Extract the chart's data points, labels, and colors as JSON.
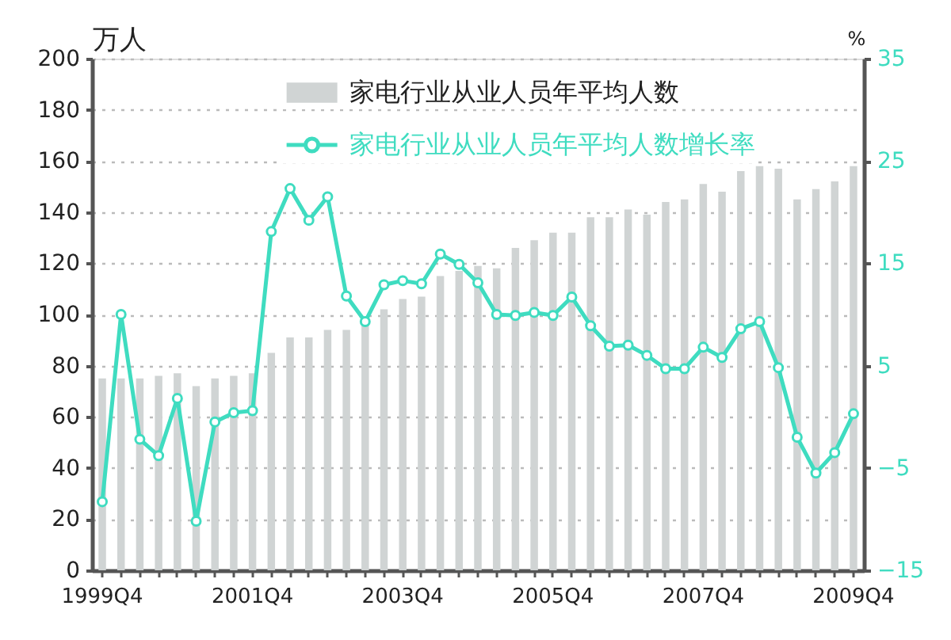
{
  "chart_data": {
    "type": "bar",
    "categories": [
      "1999Q4",
      null,
      null,
      null,
      null,
      null,
      null,
      null,
      "2001Q4",
      null,
      null,
      null,
      null,
      null,
      null,
      null,
      "2003Q4",
      null,
      null,
      null,
      null,
      null,
      null,
      null,
      "2005Q4",
      null,
      null,
      null,
      null,
      null,
      null,
      null,
      "2007Q4",
      null,
      null,
      null,
      null,
      null,
      null,
      null,
      "2009Q4"
    ],
    "ylabel": "万人",
    "y2label": "%",
    "ylim": [
      0,
      200
    ],
    "yticks": [
      0,
      20,
      40,
      60,
      80,
      100,
      120,
      140,
      160,
      180,
      200
    ],
    "y2lim": [
      -15,
      35
    ],
    "y2ticks": [
      -15,
      -5,
      5,
      15,
      25,
      35
    ],
    "grid": "y",
    "legend": "top",
    "marker": "circle",
    "series": [
      {
        "name": "家电行业从业人员年平均人数",
        "color": "#d0d4d4",
        "values": [
          75,
          75,
          75,
          76,
          77,
          72,
          75,
          76,
          77,
          85,
          91,
          91,
          94,
          94,
          98,
          102,
          106,
          107,
          115,
          117,
          119,
          118,
          126,
          129,
          132,
          132,
          138,
          138,
          141,
          139,
          144,
          145,
          151,
          148,
          156,
          158,
          157,
          145,
          149,
          152,
          158
        ]
      },
      {
        "name": "家电行业从业人员年平均人数增长率",
        "type": "line",
        "axis": "y2",
        "color": "#3fdcc0",
        "values": [
          -8.3,
          10.0,
          -2.2,
          -3.8,
          1.8,
          -10.2,
          -0.5,
          0.4,
          0.6,
          18.1,
          22.3,
          19.2,
          21.5,
          11.8,
          9.3,
          12.9,
          13.3,
          13.0,
          15.9,
          14.9,
          13.1,
          10.0,
          9.9,
          10.2,
          9.9,
          11.7,
          8.9,
          6.9,
          7.0,
          6.0,
          4.7,
          4.7,
          6.8,
          5.8,
          8.6,
          9.3,
          4.8,
          -2.0,
          -5.5,
          -3.5,
          0.3
        ]
      }
    ]
  }
}
